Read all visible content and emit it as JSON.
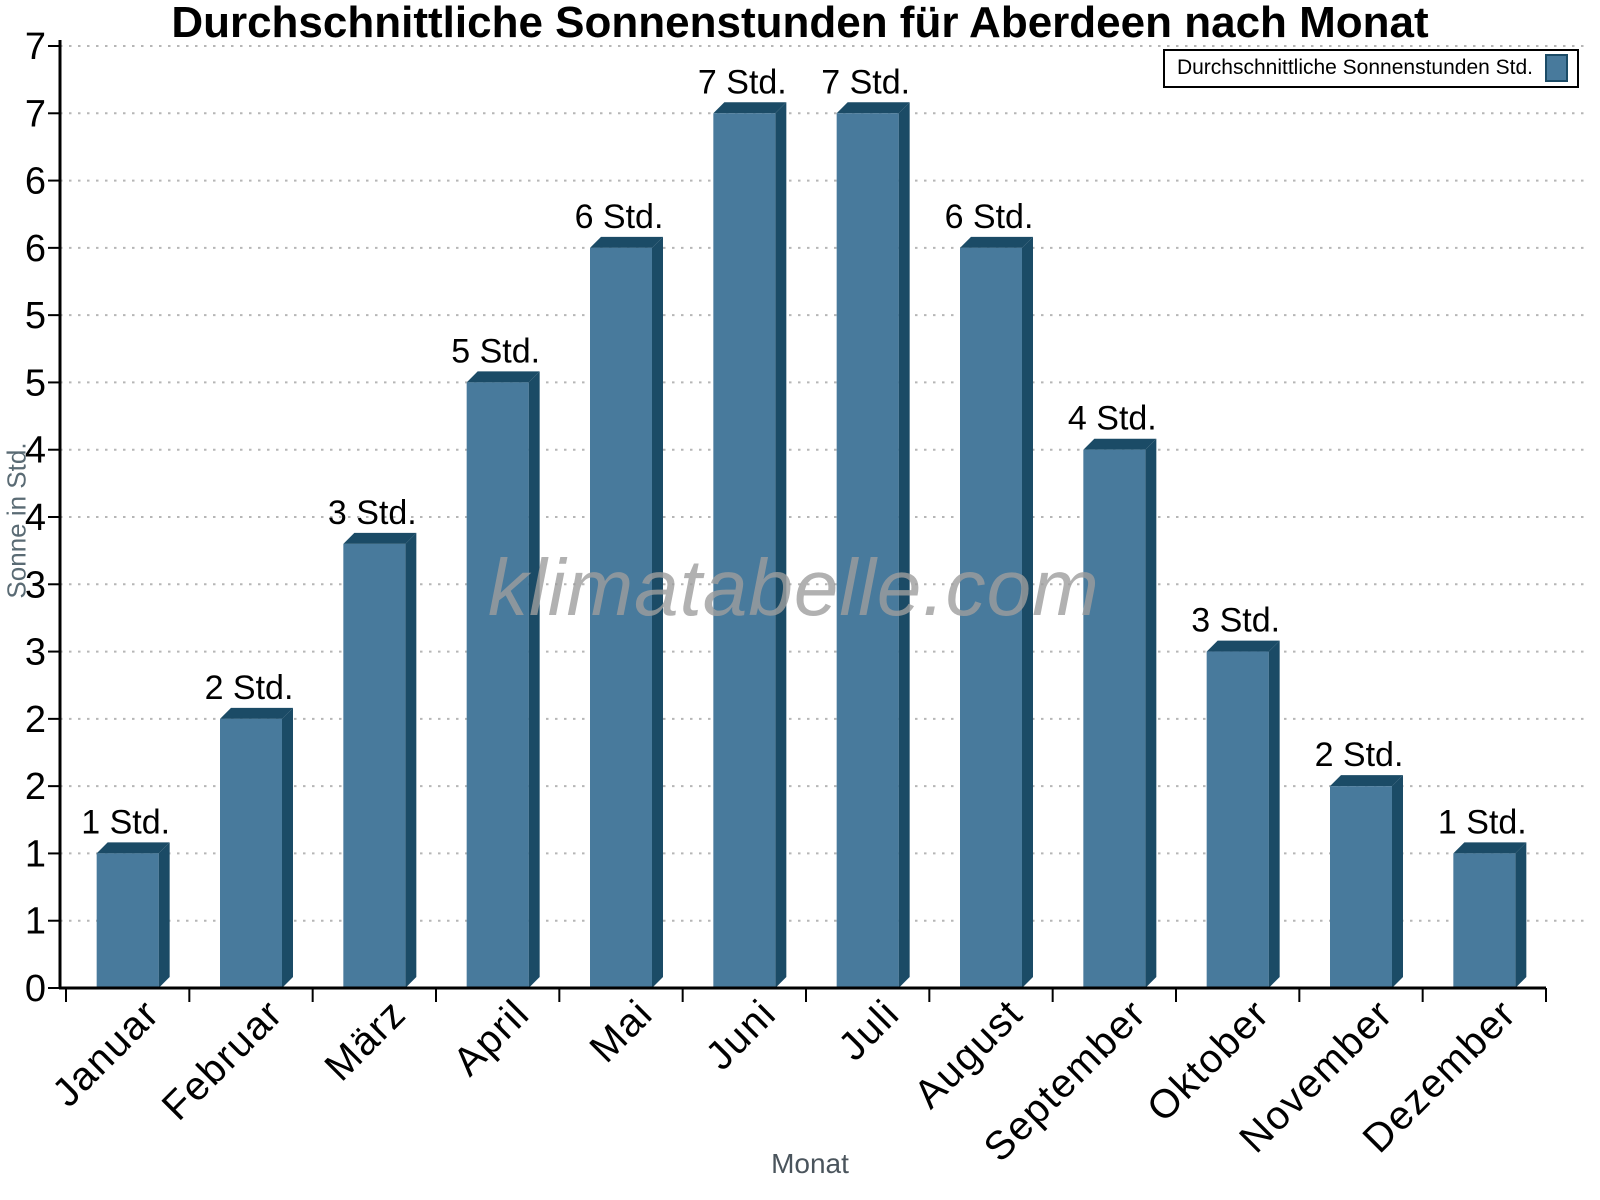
{
  "watermark": {
    "text": "klimatabelle.com"
  },
  "chart_data": {
    "type": "bar",
    "title": "Durchschnittliche Sonnenstunden für Aberdeen nach Monat",
    "xlabel": "Monat",
    "ylabel": "Sonne in Std.",
    "categories": [
      "Januar",
      "Februar",
      "März",
      "April",
      "Mai",
      "Juni",
      "Juli",
      "August",
      "September",
      "Oktober",
      "November",
      "Dezember"
    ],
    "values": [
      1.0,
      2.0,
      3.3,
      4.5,
      5.5,
      6.5,
      6.5,
      5.5,
      4.0,
      2.5,
      1.5,
      1.0
    ],
    "bar_labels": [
      "1 Std.",
      "2 Std.",
      "3 Std.",
      "5 Std.",
      "6 Std.",
      "7 Std.",
      "7 Std.",
      "6 Std.",
      "4 Std.",
      "3 Std.",
      "2 Std.",
      "1 Std."
    ],
    "legend": {
      "label": "Durchschnittliche Sonnenstunden Std.",
      "position": "top-right"
    },
    "ylim": [
      0,
      7
    ],
    "ytick_step": 0.5,
    "yticks": [
      {
        "v": 0.0,
        "label": "0"
      },
      {
        "v": 0.5,
        "label": "1"
      },
      {
        "v": 1.0,
        "label": "1"
      },
      {
        "v": 1.5,
        "label": "2"
      },
      {
        "v": 2.0,
        "label": "2"
      },
      {
        "v": 2.5,
        "label": "3"
      },
      {
        "v": 3.0,
        "label": "3"
      },
      {
        "v": 3.5,
        "label": "4"
      },
      {
        "v": 4.0,
        "label": "4"
      },
      {
        "v": 4.5,
        "label": "5"
      },
      {
        "v": 5.0,
        "label": "5"
      },
      {
        "v": 5.5,
        "label": "6"
      },
      {
        "v": 6.0,
        "label": "6"
      },
      {
        "v": 6.5,
        "label": "7"
      },
      {
        "v": 7.0,
        "label": "7"
      }
    ],
    "grid": "horizontal-dotted",
    "legend_position": "top-right",
    "colors": {
      "bar": "#487a9c",
      "bar_edge": "#1b4b66",
      "grid": "#b6b6b6",
      "axis": "#000000",
      "value_label": "#000000",
      "tick_label": "#000000",
      "axis_title": "#54616b",
      "watermark": "#9e9e9e"
    }
  }
}
